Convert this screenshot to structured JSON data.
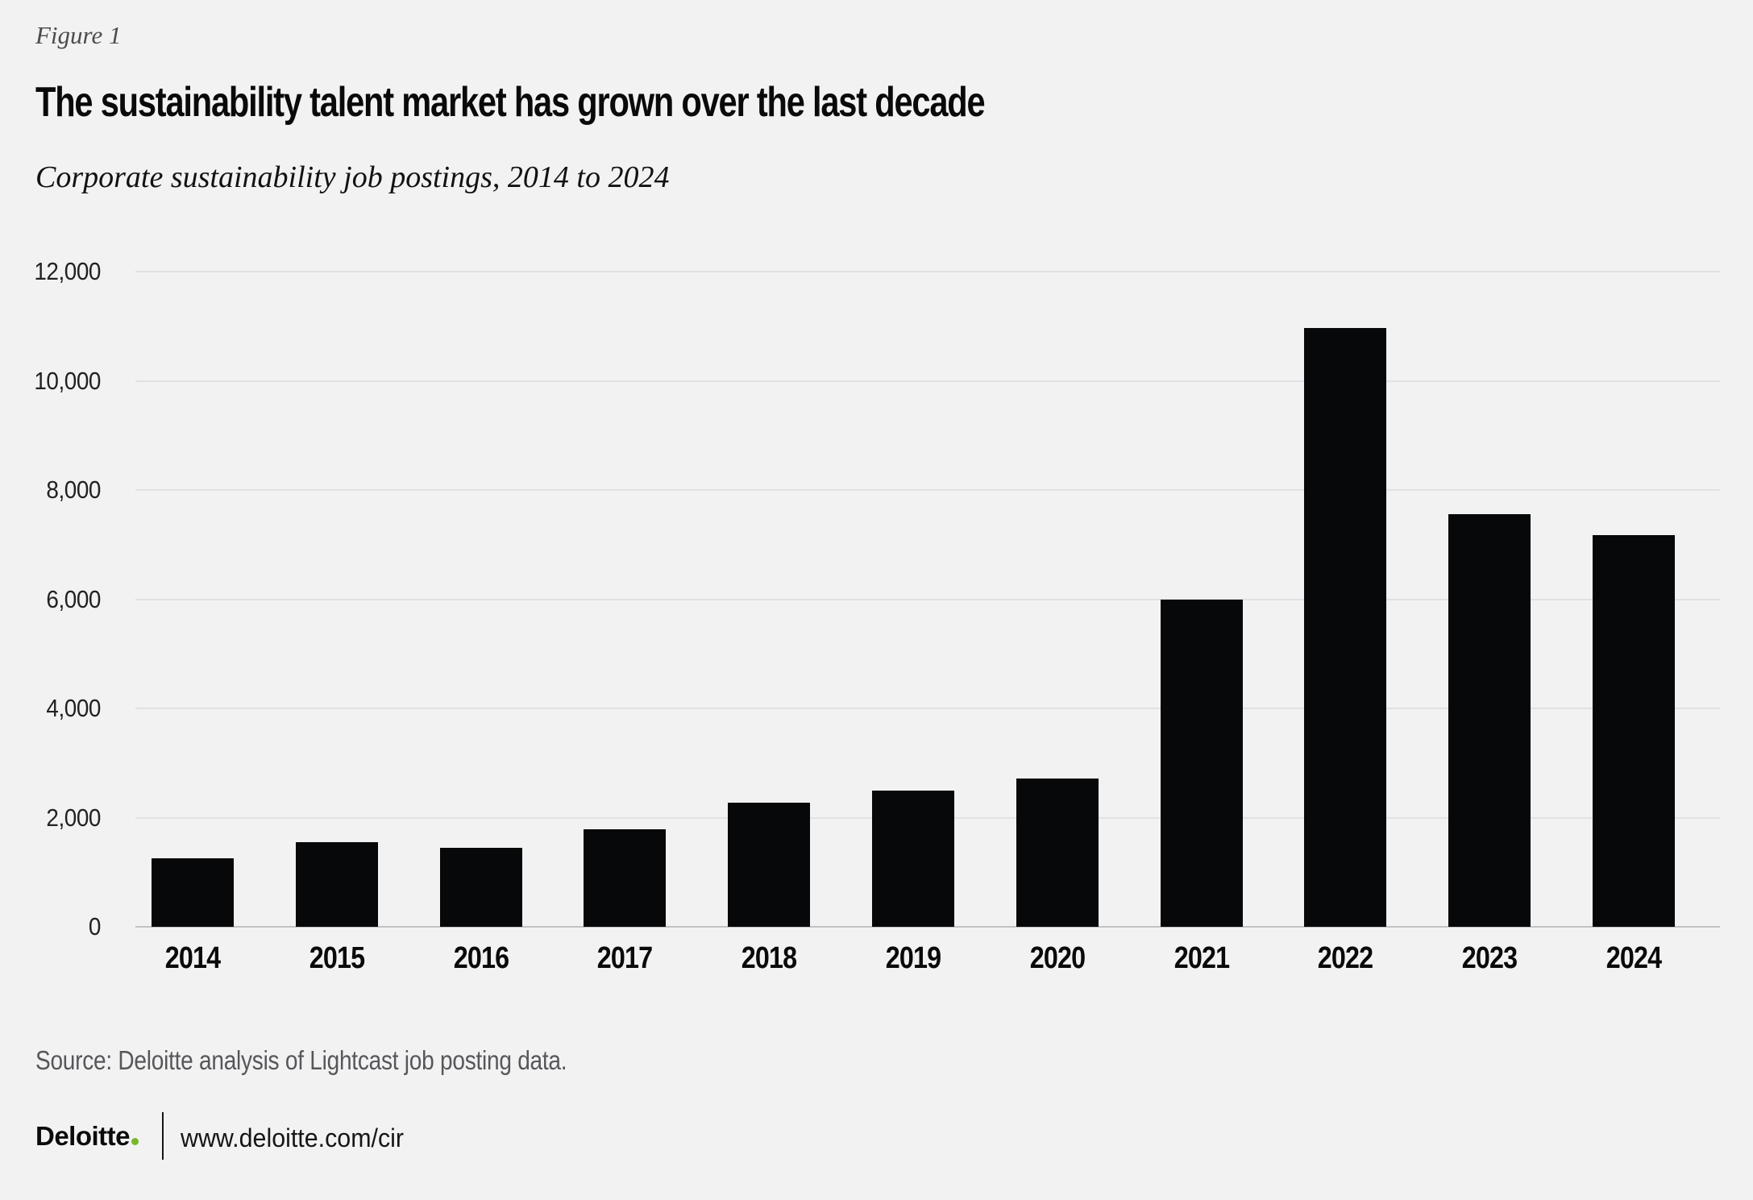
{
  "header": {
    "figure_label": "Figure 1",
    "title": "The sustainability talent market has grown over the last decade",
    "subtitle": "Corporate sustainability job postings, 2014 to 2024"
  },
  "chart_data": {
    "type": "bar",
    "title": "The sustainability talent market has grown over the last decade",
    "subtitle": "Corporate sustainability job postings, 2014 to 2024",
    "xlabel": "",
    "ylabel": "",
    "categories": [
      "2014",
      "2015",
      "2016",
      "2017",
      "2018",
      "2019",
      "2020",
      "2021",
      "2022",
      "2023",
      "2024"
    ],
    "values": [
      1250,
      1550,
      1450,
      1780,
      2280,
      2500,
      2720,
      6000,
      10960,
      7550,
      7180
    ],
    "ylim": [
      0,
      12000
    ],
    "y_ticks": [
      {
        "value": 12000,
        "label": "12,000"
      },
      {
        "value": 10000,
        "label": "10,000"
      },
      {
        "value": 8000,
        "label": "8,000"
      },
      {
        "value": 6000,
        "label": "6,000"
      },
      {
        "value": 4000,
        "label": "4,000"
      },
      {
        "value": 2000,
        "label": "2,000"
      },
      {
        "value": 0,
        "label": "0"
      }
    ],
    "grid": true,
    "legend_position": "none",
    "bar_color": "#070809",
    "background_color": "#f2f2f2",
    "gridline_color": "#e1e1e3",
    "axis_line_color": "#c3c3c5"
  },
  "footer": {
    "source": "Source: Deloitte analysis of Lightcast job posting data.",
    "logo_text": "Deloitte",
    "logo_dot_color": "#79B729",
    "url": "www.deloitte.com/cir"
  }
}
